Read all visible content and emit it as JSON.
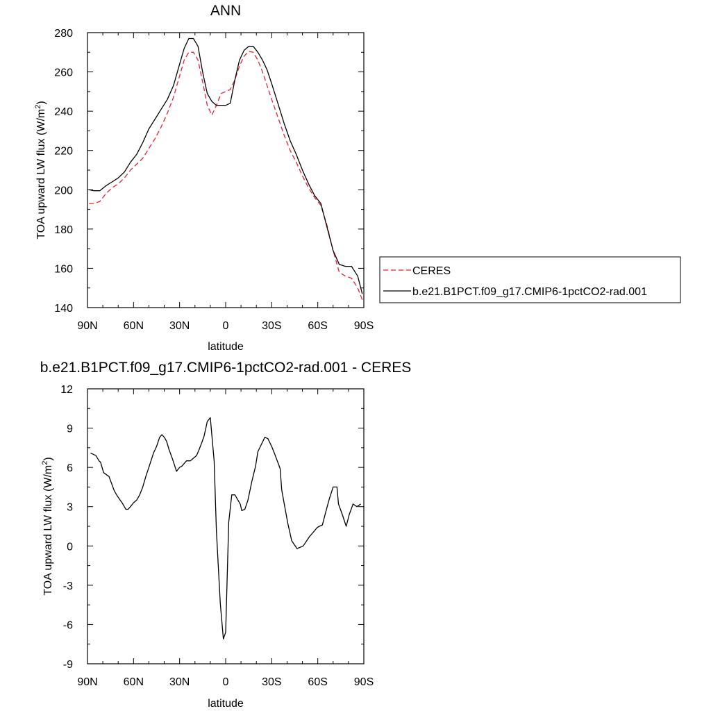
{
  "chart_data": [
    {
      "type": "line",
      "title": "ANN",
      "xlabel": "latitude",
      "ylabel": "TOA upward LW flux (W/m²)",
      "ylabel_base": "TOA upward LW flux (W/m",
      "ylabel_sup": "2",
      "ylabel_close": ")",
      "xlim": [
        90,
        -90
      ],
      "ylim": [
        140,
        280
      ],
      "xticks": [
        90,
        60,
        30,
        0,
        -30,
        -60,
        -90
      ],
      "xtick_labels": [
        "90N",
        "60N",
        "30N",
        "0",
        "30S",
        "60S",
        "90S"
      ],
      "yticks": [
        140,
        160,
        180,
        200,
        220,
        240,
        260,
        280
      ],
      "ytick_labels": [
        "140",
        "160",
        "180",
        "200",
        "220",
        "240",
        "260",
        "280"
      ],
      "legend_position": "right",
      "series": [
        {
          "name": "CERES",
          "color": "#e8222a",
          "dash": "dashed",
          "x": [
            89,
            86,
            82,
            78,
            74,
            70,
            66,
            62,
            58,
            54,
            50,
            46,
            42,
            38,
            34,
            30,
            27,
            24,
            21,
            18,
            15,
            12,
            9,
            6,
            3,
            0,
            -3,
            -6,
            -9,
            -12,
            -15,
            -18,
            -21,
            -24,
            -27,
            -30,
            -34,
            -38,
            -42,
            -46,
            -50,
            -54,
            -58,
            -62,
            -66,
            -70,
            -74,
            -78,
            -82,
            -86,
            -89
          ],
          "y": [
            193,
            193,
            194,
            198,
            201,
            203,
            206,
            210,
            213,
            216,
            221,
            226,
            232,
            239,
            247,
            258,
            266,
            270,
            270,
            266,
            255,
            243,
            238,
            243,
            249,
            250,
            251,
            256,
            263,
            268,
            270.5,
            270,
            266,
            260,
            253,
            246,
            237,
            228,
            220,
            214,
            207,
            201,
            196,
            192,
            182,
            169,
            158,
            156,
            155,
            150,
            144
          ]
        },
        {
          "name": "b.e21.B1PCT.f09_g17.CMIP6-1pctCO2-rad.001",
          "color": "#000000",
          "dash": "solid",
          "x": [
            89,
            86,
            82,
            78,
            74,
            70,
            66,
            62,
            58,
            54,
            50,
            46,
            42,
            38,
            34,
            30,
            27,
            24,
            21,
            18,
            15,
            12,
            9,
            6,
            3,
            0,
            -3,
            -6,
            -9,
            -12,
            -15,
            -18,
            -21,
            -24,
            -27,
            -30,
            -34,
            -38,
            -42,
            -46,
            -50,
            -54,
            -58,
            -62,
            -66,
            -70,
            -74,
            -78,
            -82,
            -86,
            -89
          ],
          "y": [
            200,
            199.5,
            199.5,
            202,
            204,
            206,
            209,
            214,
            218,
            224,
            231,
            236,
            241,
            246,
            253,
            264,
            272,
            277,
            277,
            273,
            260,
            249,
            245,
            243,
            243,
            243,
            244,
            256,
            266,
            271,
            273,
            273,
            270,
            266,
            261,
            254,
            244,
            234,
            225,
            218,
            210,
            203,
            197,
            193,
            181,
            169,
            162,
            161,
            161,
            156,
            147
          ]
        }
      ]
    },
    {
      "type": "line",
      "title": "b.e21.B1PCT.f09_g17.CMIP6-1pctCO2-rad.001 - CERES",
      "xlabel": "latitude",
      "ylabel": "TOA upward LW flux (W/m²)",
      "ylabel_base": "TOA upward LW flux (W/m",
      "ylabel_sup": "2",
      "ylabel_close": ")",
      "xlim": [
        90,
        -90
      ],
      "ylim": [
        -9,
        12
      ],
      "xticks": [
        90,
        60,
        30,
        0,
        -30,
        -60,
        -90
      ],
      "xtick_labels": [
        "90N",
        "60N",
        "30N",
        "0",
        "30S",
        "60S",
        "90S"
      ],
      "yticks": [
        -9,
        -6,
        -3,
        0,
        3,
        6,
        9,
        12
      ],
      "ytick_labels": [
        "-9",
        "-6",
        "-3",
        "0",
        "3",
        "6",
        "9",
        "12"
      ],
      "series": [
        {
          "color": "#000000",
          "dash": "solid",
          "x": [
            88,
            84.5,
            82.5,
            81.5,
            79.5,
            76,
            72.5,
            70.5,
            67.5,
            65,
            63.5,
            62,
            60,
            58,
            56,
            54,
            52,
            49.5,
            47,
            45,
            43,
            41.5,
            40,
            38.5,
            37,
            34.5,
            32,
            30,
            28.5,
            25.5,
            23,
            21,
            19,
            17.5,
            15.5,
            14,
            12,
            10,
            7.5,
            6,
            3.5,
            1.5,
            0,
            -2,
            -4,
            -6,
            -9.5,
            -10.5,
            -12.5,
            -14.5,
            -17,
            -19.5,
            -21,
            -23,
            -25.5,
            -27.5,
            -30,
            -32,
            -35.5,
            -36.5,
            -38.5,
            -40.5,
            -43,
            -46.5,
            -50.5,
            -54.5,
            -57.5,
            -59.5,
            -61,
            -63,
            -65,
            -67.5,
            -70,
            -72.5,
            -73.5,
            -76,
            -78.5,
            -80.5,
            -83,
            -85.5,
            -88
          ],
          "y": [
            7.1,
            6.9,
            6.5,
            6.4,
            5.6,
            5.3,
            4.2,
            3.8,
            3.3,
            2.8,
            2.8,
            3.0,
            3.3,
            3.5,
            3.9,
            4.5,
            5.3,
            6.2,
            7.1,
            7.6,
            8.3,
            8.5,
            8.3,
            8.0,
            7.4,
            6.6,
            5.7,
            6.0,
            6.1,
            6.5,
            6.5,
            6.7,
            6.9,
            7.3,
            7.9,
            8.4,
            9.5,
            9.8,
            6.5,
            1.1,
            -4.4,
            -7.1,
            -6.6,
            1.8,
            3.9,
            3.9,
            3.2,
            2.7,
            2.8,
            3.5,
            4.9,
            6.1,
            7.2,
            7.7,
            8.3,
            8.2,
            7.6,
            7.0,
            5.9,
            4.3,
            3.0,
            1.7,
            0.4,
            -0.2,
            0.0,
            0.7,
            1.1,
            1.4,
            1.5,
            1.6,
            2.5,
            3.6,
            4.5,
            4.5,
            3.2,
            2.4,
            1.5,
            2.4,
            3.2,
            3.0,
            3.2
          ]
        }
      ]
    }
  ]
}
